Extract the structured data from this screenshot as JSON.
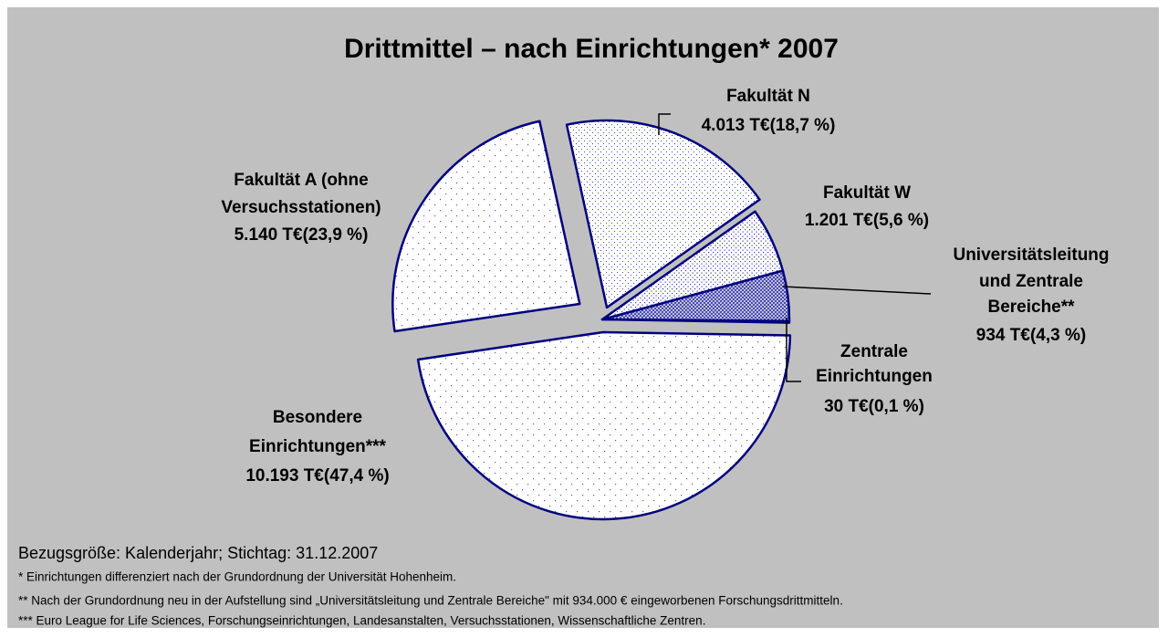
{
  "chart_data": {
    "type": "pie",
    "title": "Drittmittel – nach Einrichtungen* 2007",
    "categories": [
      [
        "Zentrale",
        "Einrichtungen"
      ],
      [
        "Universitätsleitung",
        "und Zentrale",
        "Bereiche**"
      ],
      [
        "Fakultät W"
      ],
      [
        "Fakultät N"
      ],
      [
        "Fakultät A (ohne",
        "Versuchsstationen)"
      ],
      [
        "Besondere",
        "Einrichtungen***"
      ]
    ],
    "values": [
      30,
      934,
      1201,
      4013,
      5140,
      10193
    ],
    "value_labels": [
      "30 T€(0,1 %)",
      "934 T€(4,3 %)",
      "1.201 T€(5,6 %)",
      "4.013 T€(18,7 %)",
      "5.140 T€(23,9 %)",
      "10.193 T€(47,4 %)"
    ],
    "color": "#000080",
    "notes": [
      "Bezugsgröße: Kalenderjahr; Stichtag: 31.12.2007",
      "*  Einrichtungen differenziert nach der Grundordnung der Universität Hohenheim.",
      "** Nach der Grundordnung neu in der Aufstellung sind „Universitätsleitung und Zentrale Bereiche\" mit 934.000 € eingeworbenen Forschungsdrittmitteln.",
      "*** Euro League for Life Sciences, Forschungseinrichtungen, Landesanstalten, Versuchsstationen, Wissenschaftliche Zentren."
    ]
  }
}
